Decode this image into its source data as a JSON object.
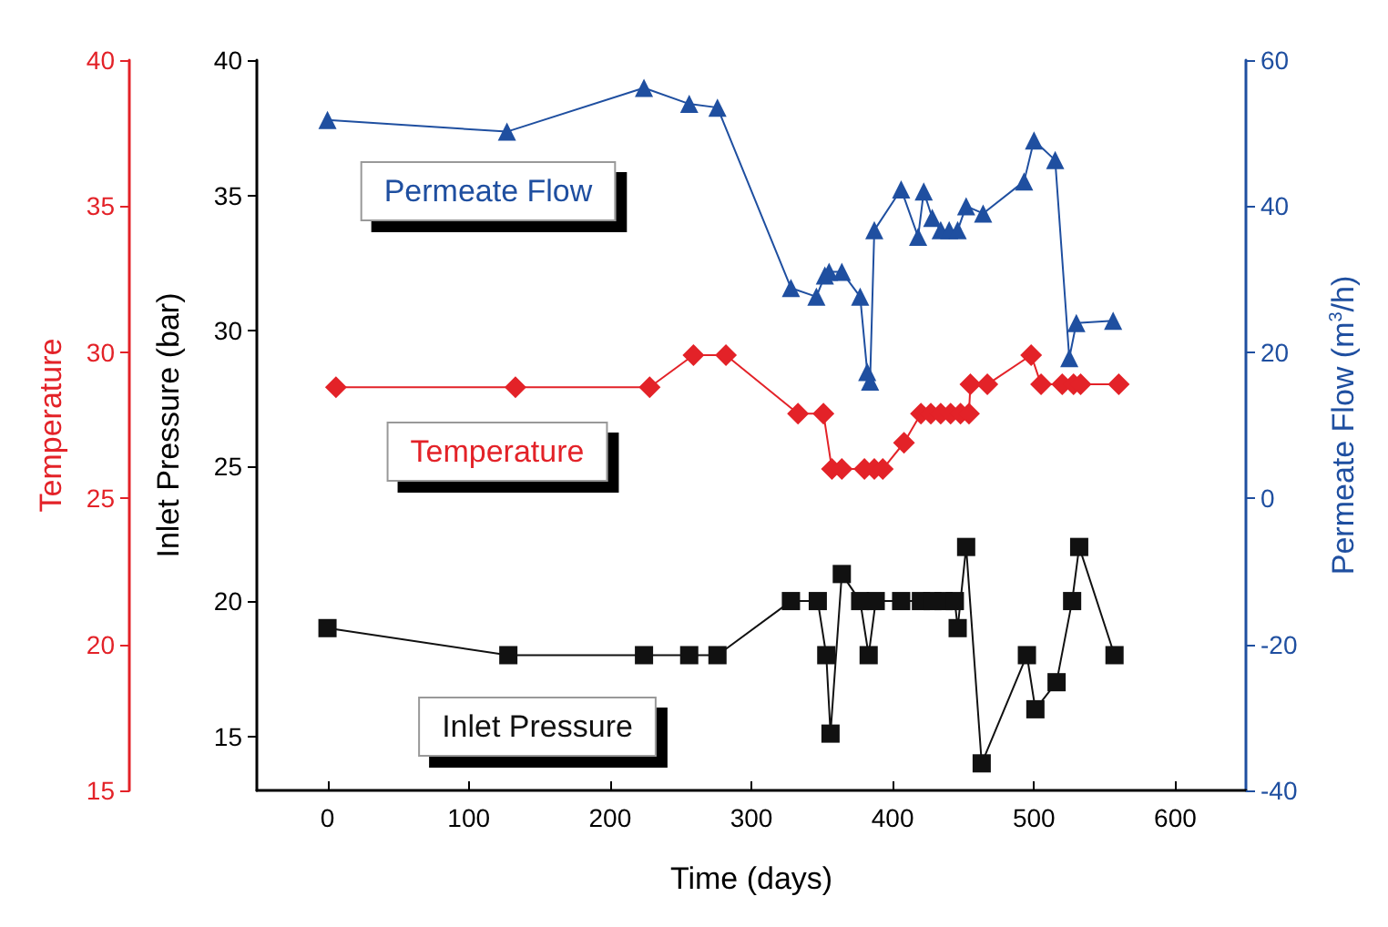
{
  "chart_data": {
    "type": "line",
    "xlabel": "Time (days)",
    "ylabel": "Inlet Pressure (bar)",
    "y2label": "Permeate Flow (m$^{3}$/h)",
    "y3label": "Temperature",
    "xlim": [
      -50,
      650
    ],
    "xticks": [
      0,
      100,
      200,
      300,
      400,
      500,
      600
    ],
    "ylim": [
      13,
      40
    ],
    "yticks": [
      15,
      20,
      25,
      30,
      35,
      40
    ],
    "y2lim": [
      -40,
      60
    ],
    "y2ticks": [
      -40,
      -20,
      0,
      20,
      40,
      60
    ],
    "y3lim": [
      15,
      40
    ],
    "y3ticks": [
      15,
      20,
      25,
      30,
      35,
      40
    ],
    "grid": false,
    "legend": false,
    "line_style": "solid",
    "series": [
      {
        "name": "Permeate Flow",
        "axis": "y2",
        "color": "#1f4fa0",
        "marker": "triangle",
        "x": [
          0,
          127,
          224,
          256,
          276,
          328,
          346,
          352,
          355,
          364,
          377,
          382,
          384,
          387,
          406,
          418,
          422,
          428,
          434,
          440,
          446,
          452,
          464,
          493,
          500,
          515,
          525,
          530,
          556
        ],
        "values": [
          51.8,
          50.2,
          56.2,
          54,
          53.5,
          28.8,
          27.6,
          30.5,
          31,
          31,
          27.6,
          17.3,
          16,
          36.7,
          42.3,
          35.8,
          42,
          38.4,
          36.7,
          36.7,
          36.7,
          40,
          39,
          43.4,
          49,
          46.3,
          19.2,
          24,
          24.3
        ]
      },
      {
        "name": "Temperature",
        "axis": "y3",
        "color": "#e32228",
        "marker": "diamond",
        "x": [
          6,
          133,
          228,
          259,
          282,
          333,
          351,
          357,
          364,
          380,
          387,
          393,
          408,
          420,
          427,
          434,
          441,
          448,
          454,
          455,
          467,
          498,
          505,
          520,
          528,
          533,
          560
        ],
        "values": [
          28.8,
          28.8,
          28.8,
          29.9,
          29.9,
          27.9,
          27.9,
          26,
          26,
          26,
          26,
          26,
          26.9,
          27.9,
          27.9,
          27.9,
          27.9,
          27.9,
          27.9,
          28.9,
          28.9,
          29.9,
          28.9,
          28.9,
          28.9,
          28.9,
          28.9
        ]
      },
      {
        "name": "Inlet Pressure",
        "axis": "y",
        "color": "#111111",
        "marker": "square",
        "x": [
          0,
          128,
          224,
          256,
          276,
          328,
          347,
          353,
          356,
          364,
          377,
          383,
          388,
          406,
          420,
          428,
          436,
          444,
          446,
          452,
          463,
          495,
          501,
          516,
          527,
          532,
          557
        ],
        "values": [
          19,
          18,
          18,
          18,
          18,
          20,
          20,
          18,
          15.1,
          21,
          20,
          18,
          20,
          20,
          20,
          20,
          20,
          20,
          19,
          22,
          14,
          18,
          16,
          17,
          20,
          22,
          18
        ]
      }
    ]
  }
}
